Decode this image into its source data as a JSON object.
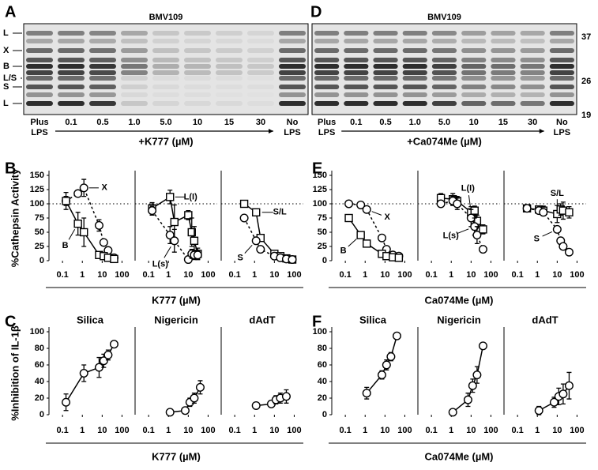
{
  "gels": [
    {
      "panel": "A",
      "title": "BMV109",
      "band_labels": [
        "L",
        "X",
        "B",
        "L/S",
        "S",
        "L"
      ],
      "lanes": [
        [
          "Plus",
          "LPS"
        ],
        [
          "0.1"
        ],
        [
          "0.5"
        ],
        [
          "1.0"
        ],
        [
          "5.0"
        ],
        [
          "10"
        ],
        [
          "15"
        ],
        [
          "30"
        ],
        [
          "No",
          "LPS"
        ]
      ],
      "treatment": "+K777 (µM)"
    },
    {
      "panel": "D",
      "title": "BMV109",
      "mw_labels": [
        "37",
        "26",
        "19"
      ],
      "lanes": [
        [
          "Plus",
          "LPS"
        ],
        [
          "0.1"
        ],
        [
          "0.5"
        ],
        [
          "1.0"
        ],
        [
          "5.0"
        ],
        [
          "10"
        ],
        [
          "15"
        ],
        [
          "30"
        ],
        [
          "No",
          "LPS"
        ]
      ],
      "treatment": "+Ca074Me (µM)"
    }
  ],
  "chart_data": [
    {
      "type": "line",
      "panel_label": "B",
      "ylabel": "%Cathepsin Activity",
      "xlabel": "K777 (µM)",
      "log_x": true,
      "xlim": [
        0.03,
        200
      ],
      "xticks": [
        0.1,
        1,
        10,
        100
      ],
      "ylim": [
        0,
        150
      ],
      "yticks": [
        0,
        25,
        50,
        75,
        100,
        125,
        150
      ],
      "reference_line": 100,
      "panels": [
        {
          "series": [
            {
              "name": "X",
              "marker": "circle",
              "dash": true,
              "x": [
                0.15,
                0.6,
                1.2,
                7,
                12,
                20,
                40
              ],
              "values": [
                105,
                118,
                128,
                62,
                32,
                18,
                5
              ],
              "errors": [
                8,
                5,
                15,
                10,
                4,
                3,
                2
              ]
            },
            {
              "name": "B",
              "marker": "square",
              "dash": false,
              "x": [
                0.15,
                0.6,
                1.2,
                7,
                12,
                20,
                40
              ],
              "values": [
                105,
                65,
                50,
                10,
                8,
                5,
                3
              ],
              "errors": [
                15,
                20,
                25,
                5,
                3,
                2,
                2
              ]
            }
          ]
        },
        {
          "series": [
            {
              "name": "L(I)",
              "marker": "square",
              "dash": false,
              "x": [
                0.15,
                1.2,
                2,
                10,
                15,
                20,
                30
              ],
              "values": [
                92,
                112,
                68,
                80,
                50,
                35,
                12
              ],
              "errors": [
                10,
                12,
                30,
                8,
                25,
                25,
                10
              ]
            },
            {
              "name": "L(s)",
              "marker": "circle",
              "dash": true,
              "x": [
                0.15,
                1.2,
                2,
                10,
                15,
                20,
                30
              ],
              "values": [
                88,
                45,
                35,
                2,
                12,
                10,
                10
              ],
              "errors": [
                8,
                15,
                20,
                2,
                8,
                8,
                8
              ]
            }
          ]
        },
        {
          "series": [
            {
              "name": "S/L",
              "marker": "square",
              "dash": false,
              "x": [
                0.3,
                1.2,
                2,
                10,
                20,
                40,
                80
              ],
              "values": [
                100,
                85,
                40,
                12,
                8,
                4,
                2
              ],
              "errors": [
                3,
                4,
                5,
                3,
                2,
                2,
                1
              ]
            },
            {
              "name": "S",
              "marker": "circle",
              "dash": true,
              "x": [
                0.3,
                1.2,
                2,
                10,
                20,
                40,
                80
              ],
              "values": [
                75,
                35,
                20,
                8,
                5,
                3,
                2
              ],
              "errors": [
                3,
                4,
                4,
                2,
                2,
                1,
                1
              ]
            }
          ]
        }
      ]
    },
    {
      "type": "line",
      "panel_label": "C",
      "ylabel": "%Inhibition of IL-1β",
      "xlabel": "K777 (µM)",
      "log_x": true,
      "xlim": [
        0.03,
        200
      ],
      "xticks": [
        0.1,
        1,
        10,
        100
      ],
      "ylim": [
        0,
        100
      ],
      "yticks": [
        0,
        20,
        40,
        60,
        80,
        100
      ],
      "panels": [
        {
          "title": "Silica",
          "series": [
            {
              "marker": "circle",
              "dash": false,
              "x": [
                0.15,
                1.2,
                7,
                12,
                20,
                40
              ],
              "values": [
                15,
                50,
                57,
                65,
                72,
                85
              ],
              "errors": [
                10,
                10,
                12,
                8,
                6,
                3
              ]
            }
          ]
        },
        {
          "title": "Nigericin",
          "series": [
            {
              "marker": "circle",
              "dash": false,
              "x": [
                1.2,
                7,
                12,
                20,
                40
              ],
              "values": [
                3,
                5,
                15,
                20,
                33
              ],
              "errors": [
                3,
                3,
                5,
                6,
                8
              ]
            }
          ]
        },
        {
          "title": "dAdT",
          "series": [
            {
              "marker": "circle",
              "dash": false,
              "x": [
                1.2,
                7,
                12,
                20,
                40
              ],
              "values": [
                11,
                13,
                18,
                20,
                22
              ],
              "errors": [
                2,
                3,
                5,
                6,
                8
              ]
            }
          ]
        }
      ]
    },
    {
      "type": "line",
      "panel_label": "E",
      "xlabel": "Ca074Me (µM)",
      "log_x": true,
      "xlim": [
        0.03,
        200
      ],
      "xticks": [
        0.1,
        1,
        10,
        100
      ],
      "ylim": [
        0,
        150
      ],
      "yticks": [
        0,
        25,
        50,
        75,
        100,
        125,
        150
      ],
      "reference_line": 100,
      "panels": [
        {
          "series": [
            {
              "name": "X",
              "marker": "circle",
              "dash": true,
              "x": [
                0.15,
                0.6,
                1.2,
                7,
                12,
                25,
                50
              ],
              "values": [
                100,
                98,
                90,
                40,
                20,
                10,
                8
              ],
              "errors": [
                3,
                3,
                4,
                4,
                3,
                2,
                2
              ]
            },
            {
              "name": "B",
              "marker": "square",
              "dash": false,
              "x": [
                0.15,
                0.6,
                1.2,
                7,
                12,
                25,
                50
              ],
              "values": [
                75,
                45,
                30,
                12,
                8,
                6,
                5
              ],
              "errors": [
                3,
                4,
                4,
                3,
                2,
                2,
                2
              ]
            }
          ]
        },
        {
          "series": [
            {
              "name": "L(I)",
              "marker": "square",
              "dash": false,
              "x": [
                0.3,
                1.2,
                2,
                10,
                15,
                20,
                40
              ],
              "values": [
                110,
                108,
                105,
                85,
                88,
                70,
                55
              ],
              "errors": [
                8,
                10,
                8,
                10,
                8,
                10,
                8
              ]
            },
            {
              "name": "L(s)",
              "marker": "circle",
              "dash": true,
              "x": [
                0.3,
                1.2,
                2,
                10,
                15,
                20,
                40
              ],
              "values": [
                100,
                105,
                100,
                75,
                60,
                45,
                20
              ],
              "errors": [
                5,
                8,
                10,
                15,
                15,
                15,
                5
              ]
            }
          ]
        },
        {
          "series": [
            {
              "name": "S/L",
              "marker": "square",
              "dash": false,
              "x": [
                0.3,
                1.2,
                2,
                10,
                15,
                20,
                40
              ],
              "values": [
                92,
                90,
                88,
                82,
                90,
                88,
                85
              ],
              "errors": [
                5,
                5,
                8,
                15,
                10,
                15,
                10
              ]
            },
            {
              "name": "S",
              "marker": "circle",
              "dash": true,
              "x": [
                0.3,
                1.2,
                2,
                10,
                15,
                20,
                40
              ],
              "values": [
                92,
                88,
                85,
                55,
                35,
                25,
                15
              ],
              "errors": [
                4,
                4,
                5,
                4,
                3,
                3,
                2
              ]
            }
          ]
        }
      ]
    },
    {
      "type": "line",
      "panel_label": "F",
      "xlabel": "Ca074Me (µM)",
      "log_x": true,
      "xlim": [
        0.03,
        200
      ],
      "xticks": [
        0.1,
        1,
        10,
        100
      ],
      "ylim": [
        0,
        100
      ],
      "yticks": [
        0,
        20,
        40,
        60,
        80,
        100
      ],
      "panels": [
        {
          "title": "Silica",
          "series": [
            {
              "marker": "circle",
              "dash": false,
              "x": [
                1.2,
                7,
                12,
                20,
                40
              ],
              "values": [
                26,
                48,
                60,
                70,
                95
              ],
              "errors": [
                7,
                5,
                6,
                5,
                2
              ]
            }
          ]
        },
        {
          "title": "Nigericin",
          "series": [
            {
              "marker": "circle",
              "dash": false,
              "x": [
                1.2,
                7,
                12,
                20,
                40
              ],
              "values": [
                3,
                18,
                35,
                48,
                83
              ],
              "errors": [
                2,
                8,
                8,
                10,
                3
              ]
            }
          ]
        },
        {
          "title": "dAdT",
          "series": [
            {
              "marker": "circle",
              "dash": false,
              "x": [
                1.2,
                7,
                12,
                20,
                40
              ],
              "values": [
                5,
                15,
                22,
                25,
                35
              ],
              "errors": [
                5,
                6,
                10,
                12,
                16
              ]
            }
          ]
        }
      ]
    }
  ]
}
